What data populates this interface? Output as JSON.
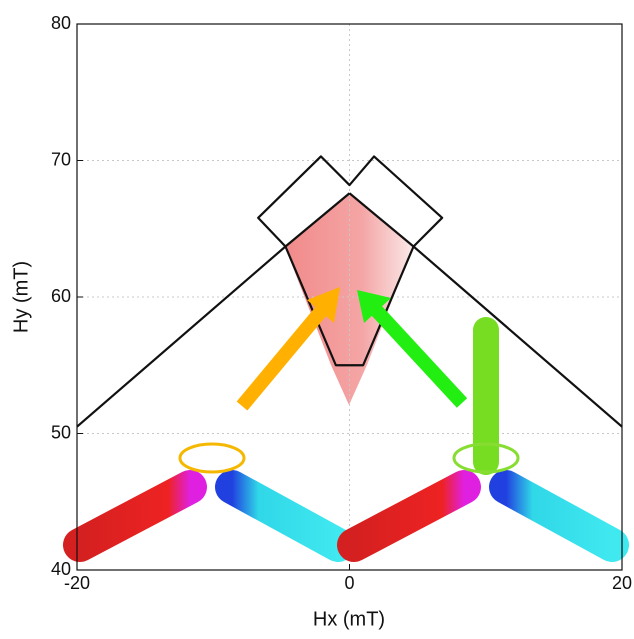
{
  "chart_data": {
    "type": "line",
    "xlabel": "Hx (mT)",
    "ylabel": "Hy (mT)",
    "xlim": [
      -20,
      20
    ],
    "ylim": [
      40,
      80
    ],
    "xticks": [
      -20,
      0,
      20
    ],
    "yticks": [
      40,
      50,
      60,
      70,
      80
    ],
    "grid": true,
    "series": [
      {
        "color": "#111111",
        "x": [
          -20,
          -4.7,
          0
        ],
        "values": [
          50.5,
          63.7,
          67.6
        ]
      },
      {
        "color": "#111111",
        "x": [
          0,
          4.7,
          20
        ],
        "values": [
          67.6,
          63.7,
          50.5
        ]
      },
      {
        "color": "#111111",
        "x": [
          -4.7,
          -1.0,
          1.0,
          4.7
        ],
        "values": [
          63.7,
          55.0,
          55.0,
          63.7
        ]
      },
      {
        "color": "#111111",
        "x": [
          -4.7,
          -6.7,
          -2.1,
          0,
          1.8,
          6.8,
          4.7
        ],
        "values": [
          63.7,
          65.8,
          70.3,
          68.2,
          70.3,
          65.8,
          63.7
        ]
      }
    ]
  }
}
